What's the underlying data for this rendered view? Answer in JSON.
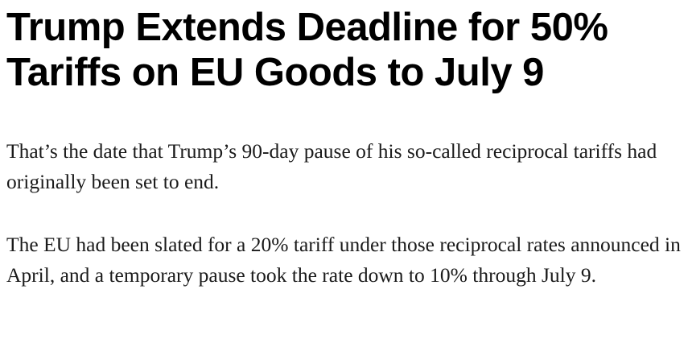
{
  "article": {
    "headline": "Trump Extends Deadline for 50% Tariffs on EU Goods to July 9",
    "paragraphs": [
      "That’s the date that Trump’s 90-day pause of his so-called reciprocal tariffs had originally been set to end.",
      "The EU had been slated for a 20% tariff under those reciprocal rates announced in April, and a temporary pause took the rate down to 10% through July 9."
    ]
  }
}
